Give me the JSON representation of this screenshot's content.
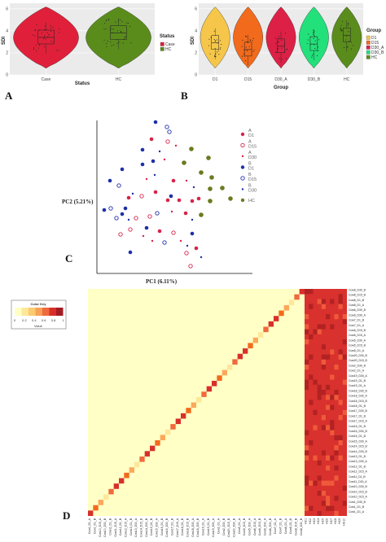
{
  "panel_labels": {
    "a": "A",
    "b": "B",
    "c": "C",
    "d": "D"
  },
  "colors": {
    "case": "#e0203a",
    "hc": "#5a8c1c",
    "d1": "#f5c64a",
    "d15": "#f26a1b",
    "d30a": "#dd2046",
    "d30b": "#22e07a",
    "hcb": "#5a8c1c",
    "panel_bg": "#ebebeb",
    "pca_red": "#d6244a",
    "pca_blue": "#1f2fa8",
    "pca_green": "#6b7a20",
    "heat_bg": "#ffffc6",
    "heat_red": "#d9312e"
  },
  "chart_data": [
    {
      "type": "violin",
      "id": "A",
      "ylabel": "SDI",
      "xlabel": "Status",
      "yticks": [
        "0",
        "2",
        "4",
        "6"
      ],
      "ylim": [
        0,
        6.5
      ],
      "categories": [
        "Case",
        "HC"
      ],
      "medians": [
        3.4,
        3.8
      ],
      "legend": {
        "title": "Status",
        "entries": [
          "Case",
          "HC"
        ]
      }
    },
    {
      "type": "violin",
      "id": "B",
      "ylabel": "SDI",
      "xlabel": "Group",
      "yticks": [
        "0",
        "2",
        "4",
        "6"
      ],
      "ylim": [
        0,
        6.5
      ],
      "categories": [
        "D1",
        "D15",
        "D30_A",
        "D30_B",
        "HC"
      ],
      "medians": [
        2.9,
        2.3,
        2.6,
        2.8,
        3.6
      ],
      "legend": {
        "title": "Group",
        "entries": [
          "D1",
          "D15",
          "D30_A",
          "D30_B",
          "HC"
        ]
      }
    },
    {
      "type": "scatter",
      "id": "C",
      "xlabel": "PC1 (6.11%)",
      "ylabel": "PC2 (5.21%)",
      "legend": [
        {
          "group": "A",
          "sub": "D1",
          "marker": "filled",
          "color": "red"
        },
        {
          "group": "A",
          "sub": "D15",
          "marker": "open",
          "color": "red"
        },
        {
          "group": "A",
          "sub": "D30",
          "marker": "star",
          "color": "red"
        },
        {
          "group": "B",
          "sub": "D1",
          "marker": "filled",
          "color": "blue"
        },
        {
          "group": "B",
          "sub": "D15",
          "marker": "open",
          "color": "blue"
        },
        {
          "group": "B",
          "sub": "D30",
          "marker": "star",
          "color": "blue"
        },
        {
          "group": "",
          "sub": "HC",
          "marker": "filled",
          "color": "green"
        }
      ]
    },
    {
      "type": "heatmap",
      "id": "D",
      "color_key": {
        "title": "Color Key",
        "ticks": [
          "0",
          "0.2",
          "0.4",
          "0.6",
          "0.8",
          "1"
        ],
        "xlabel": "Value"
      },
      "row_labels": [
        "Cow8_D30_B",
        "Cow8_D15_B",
        "Cow8_D1_B",
        "Cow8_D1_A",
        "Cow6_D30_B",
        "Cow6_D30_A",
        "Cow7_D1_B",
        "Cow7_D1_A",
        "Cow6_D15_B",
        "Cow6_D15_A",
        "Cow5_D30_A",
        "Cow5_D15_B",
        "Cow5_D1_A",
        "Cow20_D30_B",
        "Cow20_D15_B",
        "Cow2_D30_B",
        "Cow2_D1_A",
        "Cow19_D30_A",
        "Cow19_D1_B",
        "Cow19_D1_A",
        "Cow18_D30_B",
        "Cow18_D30_A",
        "Cow18_D15_B",
        "Cow18_D1_B",
        "Cow17_D30_B",
        "Cow17_D1_B",
        "Cow17_D15_A",
        "Cow16_D1_B",
        "Cow16_D30_B",
        "Cow15_D1_B",
        "Cow15_D30_A",
        "Cow14_D15_B",
        "Cow14_D30_B",
        "Cow13_D1_B",
        "Cow13_D30_A",
        "Cow12_D1_B",
        "Cow12_D15_A",
        "Cow11_D1_B",
        "Cow11_D15_A",
        "Cow10_D30_B",
        "Cow10_D15_B",
        "Cow10_D15_A",
        "Cow1_D30_B",
        "Cow1_D1_B",
        "Cow1_D1_A"
      ],
      "col_labels": [
        "Cow1_D1_A",
        "Cow1_D1_B",
        "Cow10_D15_A",
        "Cow10_D30_B",
        "Cow11_D1_B",
        "Cow11_D15_A",
        "Cow12_D1_B",
        "Cow12_D15_A",
        "Cow13_D1_B",
        "Cow13_D30_A",
        "Cow14_D15_B",
        "Cow14_D30_B",
        "Cow15_D1_B",
        "Cow15_D30_A",
        "Cow16_D1_B",
        "Cow16_D30_B",
        "Cow17_D1_B",
        "Cow17_D15_A",
        "Cow18_D1_B",
        "Cow18_D15_B",
        "Cow18_D30_A",
        "Cow18_D30_B",
        "Cow19_D1_A",
        "Cow19_D1_B",
        "Cow19_D30_A",
        "Cow2_D1_A",
        "Cow2_D30_B",
        "Cow20_D15_B",
        "Cow20_D30_B",
        "Cow5_D1_A",
        "Cow5_D15_B",
        "Cow5_D30_A",
        "Cow6_D15_A",
        "Cow6_D15_B",
        "Cow6_D30_A",
        "Cow6_D30_B",
        "Cow7_D1_A",
        "Cow7_D1_B",
        "Cow8_D1_A",
        "Cow8_D1_B",
        "Cow8_D15_B",
        "Cow8_D30_B",
        "HC1",
        "HC2",
        "HC3",
        "HC4",
        "HC5",
        "HC6",
        "HC7",
        "HC8",
        "HC9",
        "HC10"
      ]
    }
  ]
}
